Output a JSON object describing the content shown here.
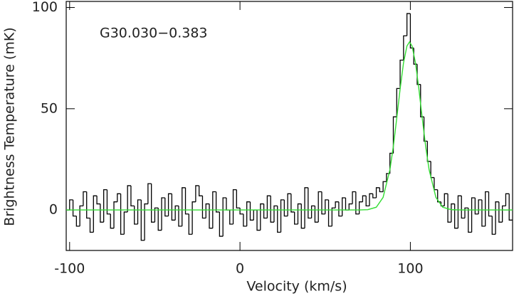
{
  "chart_data": {
    "type": "line",
    "annotation": "G30.030−0.383",
    "x_label": "Velocity (km/s)",
    "y_label": "Brightness Temperature (mK)",
    "xlim": [
      -102,
      160
    ],
    "ylim": [
      -20,
      103
    ],
    "xticks": [
      -100,
      0,
      100
    ],
    "yticks": [
      0,
      50,
      100
    ],
    "series": [
      {
        "color": "#000000",
        "style": "steps",
        "x": [
          -101,
          -99,
          -97,
          -95,
          -93,
          -91,
          -89,
          -87,
          -85,
          -83,
          -81,
          -79,
          -77,
          -75,
          -73,
          -71,
          -69,
          -67,
          -65,
          -63,
          -61,
          -59,
          -57,
          -55,
          -53,
          -51,
          -49,
          -47,
          -45,
          -43,
          -41,
          -39,
          -37,
          -35,
          -33,
          -31,
          -29,
          -27,
          -25,
          -23,
          -21,
          -19,
          -17,
          -15,
          -13,
          -11,
          -9,
          -7,
          -5,
          -3,
          -1,
          1,
          3,
          5,
          7,
          9,
          11,
          13,
          15,
          17,
          19,
          21,
          23,
          25,
          27,
          29,
          31,
          33,
          35,
          37,
          39,
          41,
          43,
          45,
          47,
          49,
          51,
          53,
          55,
          57,
          59,
          61,
          63,
          65,
          67,
          69,
          71,
          73,
          75,
          77,
          79,
          81,
          83,
          85,
          87,
          89,
          91,
          93,
          95,
          97,
          99,
          101,
          103,
          105,
          107,
          109,
          111,
          113,
          115,
          117,
          119,
          121,
          123,
          125,
          127,
          129,
          131,
          133,
          135,
          137,
          139,
          141,
          143,
          145,
          147,
          149,
          151,
          153,
          155,
          157,
          159
        ],
        "values": [
          0,
          5,
          -3,
          -8,
          2,
          9,
          -4,
          -11,
          7,
          3,
          -6,
          10,
          -2,
          -9,
          4,
          8,
          -12,
          -1,
          12,
          2,
          -7,
          5,
          -15,
          3,
          13,
          -6,
          1,
          -10,
          6,
          -3,
          8,
          -5,
          2,
          -8,
          11,
          -2,
          -12,
          4,
          12,
          7,
          -4,
          3,
          -9,
          9,
          -1,
          -13,
          6,
          0,
          -7,
          10,
          1,
          -2,
          -8,
          4,
          -5,
          0,
          -10,
          3,
          -4,
          7,
          -6,
          2,
          -11,
          5,
          -3,
          8,
          -1,
          -7,
          3,
          -9,
          11,
          -4,
          2,
          -6,
          9,
          -2,
          5,
          -8,
          1,
          4,
          -3,
          6,
          0,
          3,
          9,
          -2,
          4,
          7,
          2,
          8,
          6,
          11,
          9,
          14,
          18,
          28,
          46,
          60,
          74,
          86,
          97,
          80,
          72,
          62,
          46,
          34,
          24,
          16,
          10,
          4,
          2,
          8,
          -6,
          3,
          -9,
          7,
          -4,
          1,
          -11,
          6,
          -2,
          5,
          -8,
          9,
          -3,
          -12,
          4,
          -6,
          2,
          8,
          -5
        ]
      },
      {
        "color": "#33dd33",
        "style": "line",
        "x": [
          -102,
          60,
          70,
          75,
          80,
          84,
          88,
          90,
          92,
          94,
          96,
          98,
          99.5,
          101,
          103,
          105,
          107,
          109,
          111,
          115,
          119,
          124,
          130,
          160
        ],
        "values": [
          0,
          0,
          0,
          0.13,
          1.36,
          6.2,
          19.9,
          31.3,
          45.2,
          59.8,
          72.7,
          81.0,
          83,
          81.0,
          72.7,
          59.8,
          45.2,
          31.3,
          19.9,
          6.2,
          1.36,
          0.13,
          0,
          0
        ]
      }
    ]
  }
}
